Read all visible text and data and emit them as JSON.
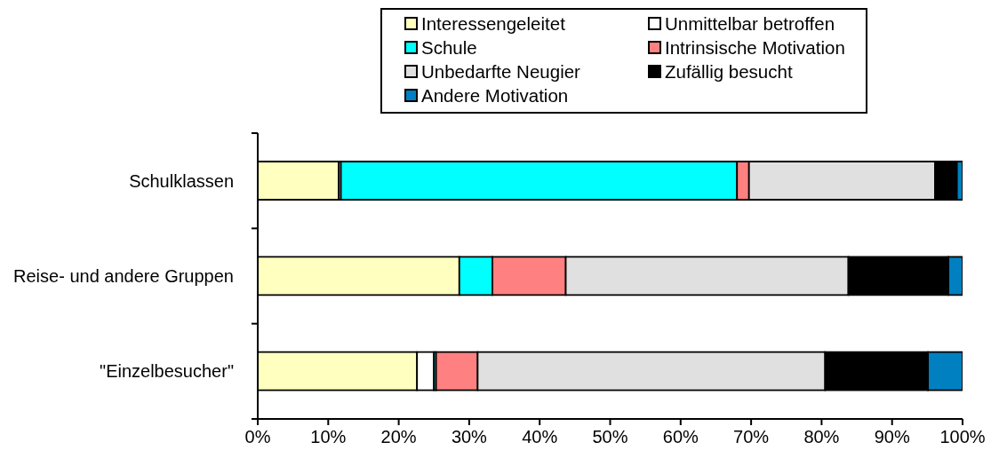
{
  "chart_data": {
    "type": "bar",
    "orientation": "horizontal",
    "stacked": true,
    "categories": [
      "Schulklassen",
      "Reise- und andere Gruppen",
      "\"Einzelbesucher\""
    ],
    "series": [
      {
        "name": "Interessengeleitet",
        "color": "#ffffc0",
        "values": [
          11.5,
          28.6,
          22.6
        ]
      },
      {
        "name": "Unmittelbar betroffen",
        "color": "#ffffff",
        "values": [
          0.3,
          0,
          2.4
        ]
      },
      {
        "name": "Schule",
        "color": "#00ffff",
        "values": [
          56.2,
          4.7,
          0.3
        ]
      },
      {
        "name": "Intrinsische Motivation",
        "color": "#ff8080",
        "values": [
          1.7,
          10.4,
          5.9
        ]
      },
      {
        "name": "Unbedarfte Neugier",
        "color": "#e0e0e0",
        "values": [
          26.4,
          40.1,
          49.3
        ]
      },
      {
        "name": "Zufällig besucht",
        "color": "#000000",
        "values": [
          3.1,
          14.2,
          14.6
        ]
      },
      {
        "name": "Andere Motivation",
        "color": "#0080c0",
        "values": [
          0.8,
          2.0,
          4.9
        ]
      }
    ],
    "xlim": [
      0,
      100
    ],
    "xticks": [
      {
        "value": 0,
        "label": "0%"
      },
      {
        "value": 10,
        "label": "10%"
      },
      {
        "value": 20,
        "label": "20%"
      },
      {
        "value": 30,
        "label": "30%"
      },
      {
        "value": 40,
        "label": "40%"
      },
      {
        "value": 50,
        "label": "50%"
      },
      {
        "value": 60,
        "label": "60%"
      },
      {
        "value": 70,
        "label": "70%"
      },
      {
        "value": 80,
        "label": "80%"
      },
      {
        "value": 90,
        "label": "90%"
      },
      {
        "value": 100,
        "label": "100%"
      }
    ],
    "legend": "top"
  }
}
